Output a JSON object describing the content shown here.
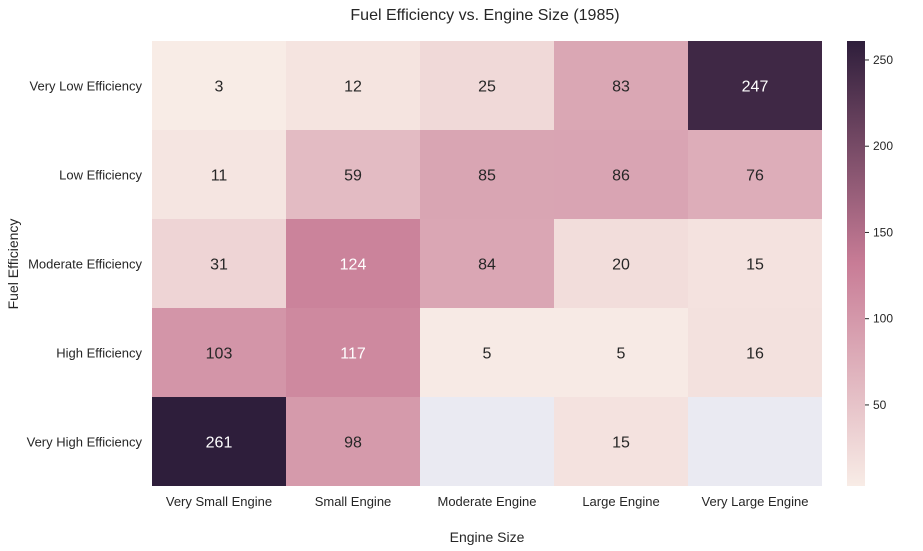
{
  "chart_data": {
    "type": "heatmap",
    "title": "Fuel Efficiency vs. Engine Size (1985)",
    "xlabel": "Engine Size",
    "ylabel": "Fuel Efficiency",
    "x_categories": [
      "Very Small Engine",
      "Small Engine",
      "Moderate Engine",
      "Large Engine",
      "Very Large Engine"
    ],
    "y_categories": [
      "Very Low Efficiency",
      "Low Efficiency",
      "Moderate Efficiency",
      "High Efficiency",
      "Very High Efficiency"
    ],
    "values": [
      [
        3,
        12,
        25,
        83,
        247
      ],
      [
        11,
        59,
        85,
        86,
        76
      ],
      [
        31,
        124,
        84,
        20,
        15
      ],
      [
        103,
        117,
        5,
        5,
        16
      ],
      [
        261,
        98,
        null,
        15,
        null
      ]
    ],
    "colorbar": {
      "min": 3,
      "max": 261,
      "ticks": [
        50,
        100,
        150,
        200,
        250
      ]
    },
    "colors": {
      "low": "#f8ece6",
      "mid": "#c87c96",
      "high": "#2e1e3b",
      "missing": "#eaeaf2"
    }
  }
}
